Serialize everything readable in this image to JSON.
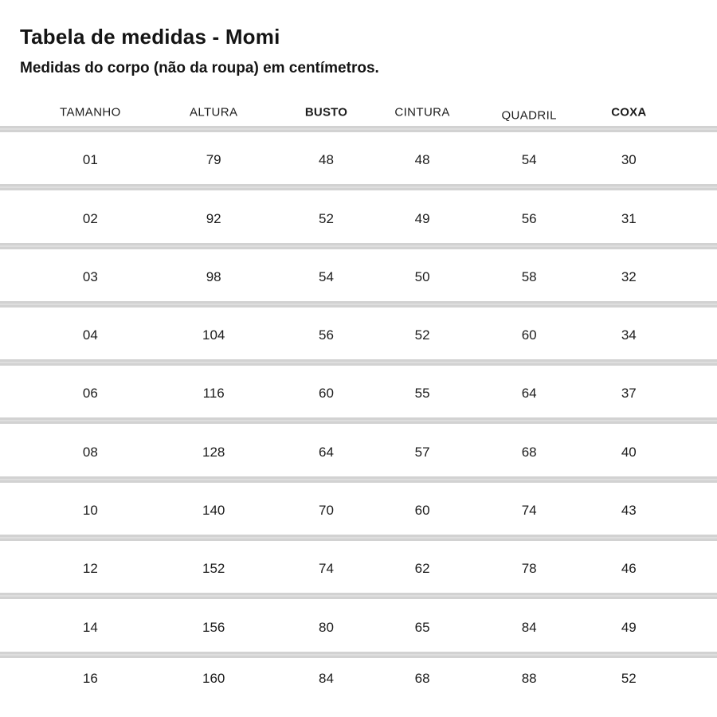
{
  "page": {
    "title": "Tabela de medidas - Momi",
    "subtitle": "Medidas do corpo (não da roupa) em centímetros."
  },
  "table": {
    "columns": [
      "TAMANHO",
      "ALTURA",
      "BUSTO",
      "CINTURA",
      "QUADRIL",
      "COXA"
    ],
    "rows": [
      [
        "01",
        "79",
        "48",
        "48",
        "54",
        "30"
      ],
      [
        "02",
        "92",
        "52",
        "49",
        "56",
        "31"
      ],
      [
        "03",
        "98",
        "54",
        "50",
        "58",
        "32"
      ],
      [
        "04",
        "104",
        "56",
        "52",
        "60",
        "34"
      ],
      [
        "06",
        "116",
        "60",
        "55",
        "64",
        "37"
      ],
      [
        "08",
        "128",
        "64",
        "57",
        "68",
        "40"
      ],
      [
        "10",
        "140",
        "70",
        "60",
        "74",
        "43"
      ],
      [
        "12",
        "152",
        "74",
        "62",
        "78",
        "46"
      ],
      [
        "14",
        "156",
        "80",
        "65",
        "84",
        "49"
      ],
      [
        "16",
        "160",
        "84",
        "68",
        "88",
        "52"
      ]
    ]
  },
  "colors": {
    "text": "#1c1c1c",
    "separator": "#d2d2d2",
    "background": "#ffffff"
  }
}
